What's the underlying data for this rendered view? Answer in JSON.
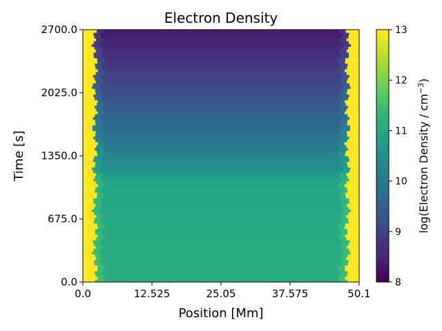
{
  "chart_data": {
    "type": "heatmap",
    "title": "Electron Density",
    "xlabel": "Position [Mm]",
    "ylabel": "Time [s]",
    "xlim": [
      0.0,
      50.1
    ],
    "ylim": [
      0.0,
      2700.0
    ],
    "xticks": [
      "0.0",
      "12.525",
      "25.05",
      "37.575",
      "50.1"
    ],
    "xtick_values": [
      0.0,
      12.525,
      25.05,
      37.575,
      50.1
    ],
    "yticks": [
      "0.0",
      "675.0",
      "1350.0",
      "2025.0",
      "2700.0"
    ],
    "ytick_values": [
      0.0,
      675.0,
      1350.0,
      2025.0,
      2700.0
    ],
    "colorbar": {
      "label_prefix": "log(Electron Density / cm",
      "label_exponent": "−3",
      "label_suffix": ")",
      "range": [
        8,
        13
      ],
      "ticks": [
        "8",
        "9",
        "10",
        "11",
        "12",
        "13"
      ],
      "tick_values": [
        8,
        9,
        10,
        11,
        12,
        13
      ],
      "colormap": "viridis"
    },
    "description_values": {
      "footpoint_density": 13.0,
      "boundary_positions_mm": [
        2.2,
        48.0
      ],
      "rows": [
        {
          "time": 0,
          "center": 11.1
        },
        {
          "time": 300,
          "center": 11.05
        },
        {
          "time": 675,
          "center": 11.0
        },
        {
          "time": 1100,
          "center": 10.9
        },
        {
          "time": 1180,
          "center": 10.55
        },
        {
          "time": 1350,
          "center": 10.25
        },
        {
          "time": 1700,
          "center": 9.7
        },
        {
          "time": 2025,
          "center": 9.2
        },
        {
          "time": 2300,
          "center": 8.85
        },
        {
          "time": 2550,
          "center": 8.55
        },
        {
          "time": 2700,
          "center": 8.35
        }
      ]
    }
  },
  "colors": {
    "viridis": [
      "#440154",
      "#482878",
      "#3e4989",
      "#31688e",
      "#26828e",
      "#1f9e89",
      "#35b779",
      "#6ece58",
      "#b5de2b",
      "#fde725"
    ]
  }
}
